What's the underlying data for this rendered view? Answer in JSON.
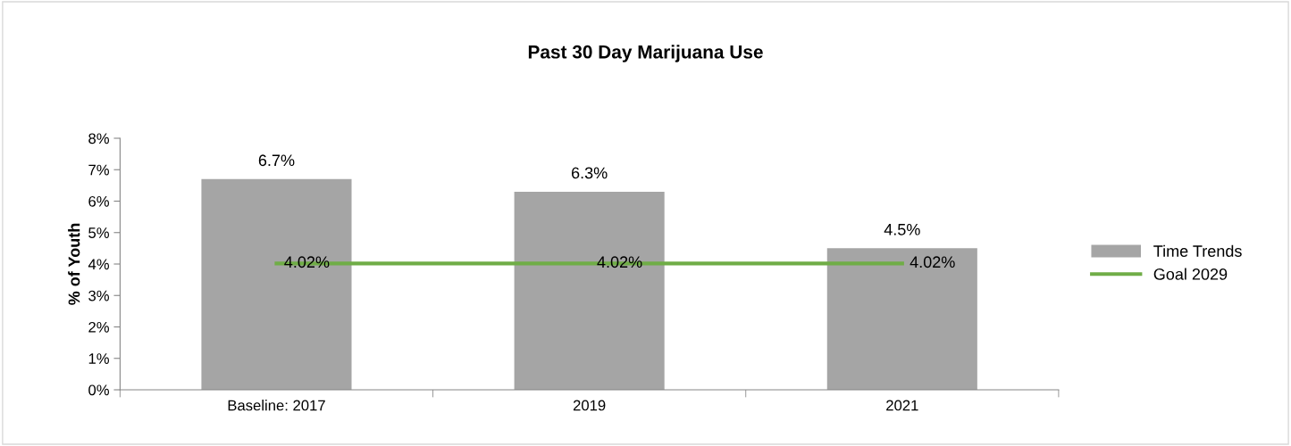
{
  "chart_data": {
    "type": "bar",
    "title": "Past 30 Day Marijuana Use",
    "ylabel": "% of Youth",
    "categories": [
      "Baseline: 2017",
      "2019",
      "2021"
    ],
    "series": [
      {
        "name": "Time Trends",
        "color": "#a5a5a5",
        "values": [
          6.7,
          6.3,
          4.5
        ],
        "value_labels": [
          "6.7%",
          "6.3%",
          "4.5%"
        ]
      },
      {
        "name": "Goal 2029",
        "type": "line",
        "color": "#70ad47",
        "values": [
          4.02,
          4.02,
          4.02
        ],
        "value_labels": [
          "4.02%",
          "4.02%",
          "4.02%"
        ]
      }
    ],
    "ylim": [
      0,
      8
    ],
    "yticks": [
      {
        "value": 0,
        "label": "0%"
      },
      {
        "value": 1,
        "label": "1%"
      },
      {
        "value": 2,
        "label": "2%"
      },
      {
        "value": 3,
        "label": "3%"
      },
      {
        "value": 4,
        "label": "4%"
      },
      {
        "value": 5,
        "label": "5%"
      },
      {
        "value": 6,
        "label": "6%"
      },
      {
        "value": 7,
        "label": "7%"
      },
      {
        "value": 8,
        "label": "8%"
      }
    ],
    "grid": false,
    "legend": "right",
    "marker": "none",
    "line_style": "solid"
  }
}
